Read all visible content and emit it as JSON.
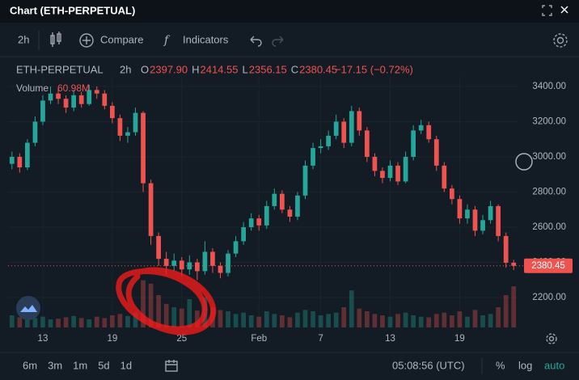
{
  "header": {
    "title": "Chart (ETH-PERPETUAL)"
  },
  "toolbar": {
    "interval": "2h",
    "compare": "Compare",
    "indicators": "Indicators"
  },
  "legend": {
    "symbol": "ETH-PERPETUAL",
    "interval": "2h",
    "ohlc": [
      {
        "key": "O",
        "text": "2397.90"
      },
      {
        "key": "H",
        "text": "2414.55"
      },
      {
        "key": "L",
        "text": "2356.15"
      },
      {
        "key": "C",
        "text": "2380.45"
      }
    ],
    "change": "−17.15 (−0.72%)",
    "volume_name": "Volume",
    "volume_text": "60.98M"
  },
  "footer": {
    "ranges": [
      "6m",
      "3m",
      "1m",
      "5d",
      "1d"
    ],
    "clock": "05:08:56 (UTC)",
    "percent": "%",
    "log": "log",
    "auto": "auto"
  },
  "chart_data": {
    "type": "candlestick",
    "up_color": "#26a69a",
    "down_color": "#ef5350",
    "open": [
      2960,
      3000,
      2940,
      3080,
      3200,
      3320,
      3360,
      3330,
      3280,
      3350,
      3300,
      3380,
      3360,
      3290,
      3220,
      3120,
      3140,
      3250,
      2850,
      2550,
      2420,
      2380,
      2410,
      2360,
      2400,
      2350,
      2460,
      2380,
      2340,
      2450,
      2520,
      2600,
      2650,
      2610,
      2720,
      2790,
      2700,
      2660,
      2780,
      2950,
      3050,
      3060,
      3120,
      3200,
      3080,
      3260,
      3150,
      3000,
      2920,
      2880,
      2950,
      2860,
      3000,
      3150,
      3180,
      3100,
      2950,
      2820,
      2760,
      2650,
      2700,
      2580,
      2640,
      2720,
      2550,
      2397.9
    ],
    "high": [
      3030,
      3020,
      3100,
      3230,
      3350,
      3400,
      3390,
      3350,
      3380,
      3370,
      3410,
      3400,
      3380,
      3310,
      3240,
      3170,
      3280,
      3260,
      2870,
      2570,
      2460,
      2450,
      2430,
      2440,
      2420,
      2520,
      2480,
      2400,
      2470,
      2550,
      2630,
      2680,
      2670,
      2750,
      2820,
      2810,
      2720,
      2800,
      2980,
      3080,
      3100,
      3150,
      3240,
      3220,
      3290,
      3280,
      3170,
      3020,
      2940,
      2980,
      2970,
      3030,
      3180,
      3210,
      3200,
      3120,
      2970,
      2840,
      2780,
      2730,
      2720,
      2670,
      2750,
      2730,
      2570,
      2414.55
    ],
    "low": [
      2930,
      2910,
      2925,
      3060,
      3180,
      3300,
      3300,
      3250,
      3260,
      3280,
      3290,
      3330,
      3270,
      3190,
      3090,
      3080,
      3120,
      2800,
      2500,
      2380,
      2330,
      2350,
      2320,
      2330,
      2300,
      2330,
      2340,
      2310,
      2320,
      2430,
      2500,
      2580,
      2580,
      2590,
      2700,
      2680,
      2630,
      2640,
      2760,
      2930,
      3020,
      3040,
      3100,
      3050,
      3060,
      3120,
      2970,
      2890,
      2850,
      2860,
      2840,
      2850,
      2980,
      3130,
      3080,
      2920,
      2800,
      2730,
      2620,
      2620,
      2550,
      2560,
      2620,
      2520,
      2370,
      2356.15
    ],
    "close": [
      3000,
      2940,
      3080,
      3200,
      3320,
      3360,
      3330,
      3280,
      3350,
      3300,
      3380,
      3360,
      3290,
      3220,
      3120,
      3140,
      3250,
      2850,
      2550,
      2420,
      2380,
      2410,
      2360,
      2400,
      2350,
      2460,
      2380,
      2340,
      2450,
      2520,
      2600,
      2650,
      2610,
      2720,
      2790,
      2700,
      2660,
      2780,
      2950,
      3050,
      3060,
      3120,
      3200,
      3080,
      3260,
      3150,
      3000,
      2920,
      2880,
      2950,
      2860,
      3000,
      3150,
      3180,
      3100,
      2950,
      2820,
      2760,
      2650,
      2700,
      2580,
      2640,
      2720,
      2550,
      2397.9,
      2380.45
    ],
    "volume": [
      18,
      15,
      20,
      14,
      16,
      12,
      13,
      15,
      17,
      14,
      12,
      16,
      14,
      18,
      20,
      17,
      22,
      70,
      65,
      48,
      35,
      30,
      28,
      42,
      25,
      45,
      30,
      26,
      24,
      20,
      22,
      18,
      16,
      24,
      20,
      18,
      15,
      22,
      26,
      24,
      18,
      20,
      22,
      30,
      55,
      28,
      24,
      20,
      18,
      16,
      20,
      22,
      18,
      16,
      15,
      20,
      22,
      18,
      24,
      16,
      26,
      18,
      20,
      30,
      48,
      60.98
    ],
    "volume_lim": [
      0,
      120
    ],
    "ylim": [
      2030,
      3455
    ],
    "yticks": [
      {
        "value": 2200,
        "label": "2200.00"
      },
      {
        "value": 2400,
        "label": "2400.00"
      },
      {
        "value": 2600,
        "label": "2600.00"
      },
      {
        "value": 2800,
        "label": "2800.00"
      },
      {
        "value": 3000,
        "label": "3000.00"
      },
      {
        "value": 3200,
        "label": "3200.00"
      },
      {
        "value": 3400,
        "label": "3400.00"
      }
    ],
    "xticks": [
      {
        "value": 4,
        "label": "13"
      },
      {
        "value": 13,
        "label": "19"
      },
      {
        "value": 22,
        "label": "25"
      },
      {
        "value": 32,
        "label": "Feb"
      },
      {
        "value": 40,
        "label": "7"
      },
      {
        "value": 49,
        "label": "13"
      },
      {
        "value": 58,
        "label": "19"
      }
    ],
    "last_price": 2380.45
  }
}
